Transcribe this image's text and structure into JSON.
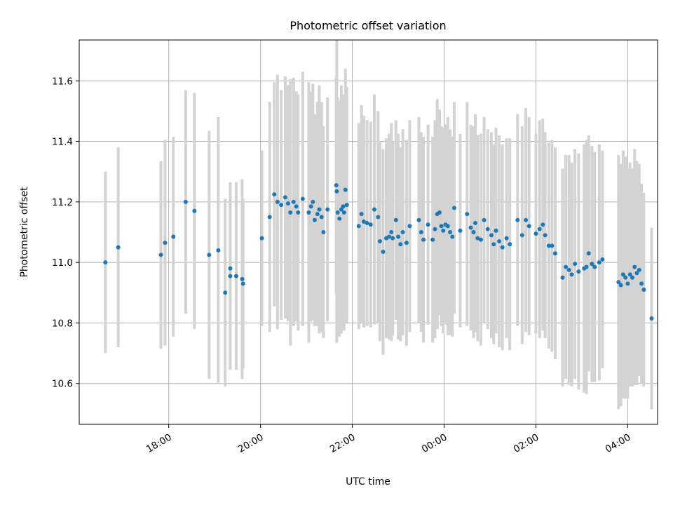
{
  "chart_data": {
    "type": "scatter",
    "title": "Photometric offset variation",
    "xlabel": "UTC time",
    "ylabel": "Photometric offset",
    "x_unit": "hours UTC (continuous, past midnight > 24)",
    "xlim": [
      16.05,
      28.65
    ],
    "ylim": [
      10.465,
      11.735
    ],
    "x_ticks": [
      18,
      20,
      22,
      24,
      26,
      28
    ],
    "x_tick_labels": [
      "18:00",
      "20:00",
      "22:00",
      "00:00",
      "02:00",
      "04:00"
    ],
    "y_ticks": [
      10.6,
      10.8,
      11.0,
      11.2,
      11.4,
      11.6
    ],
    "y_tick_labels": [
      "10.6",
      "10.8",
      "11.0",
      "11.2",
      "11.4",
      "11.6"
    ],
    "grid": true,
    "colors": {
      "marker": "#1f77b4",
      "errorbar": "#d3d3d3",
      "grid": "#b0b0b0"
    },
    "points": [
      [
        16.62,
        11.0,
        0.3
      ],
      [
        16.9,
        11.05,
        0.33
      ],
      [
        17.83,
        11.025,
        0.31
      ],
      [
        17.92,
        11.065,
        0.34
      ],
      [
        18.1,
        11.085,
        0.33
      ],
      [
        18.37,
        11.2,
        0.37
      ],
      [
        18.56,
        11.17,
        0.39
      ],
      [
        18.88,
        11.025,
        0.41
      ],
      [
        19.08,
        11.04,
        0.44
      ],
      [
        19.23,
        10.9,
        0.31
      ],
      [
        19.34,
        10.955,
        0.31
      ],
      [
        19.34,
        10.98,
        0.28
      ],
      [
        19.47,
        10.955,
        0.31
      ],
      [
        19.6,
        10.945,
        0.33
      ],
      [
        19.62,
        10.93,
        0.28
      ],
      [
        20.03,
        11.08,
        0.29
      ],
      [
        20.2,
        11.15,
        0.38
      ],
      [
        20.3,
        11.225,
        0.37
      ],
      [
        20.37,
        11.2,
        0.42
      ],
      [
        20.45,
        11.19,
        0.38
      ],
      [
        20.54,
        11.215,
        0.4
      ],
      [
        20.6,
        11.195,
        0.39
      ],
      [
        20.65,
        11.165,
        0.44
      ],
      [
        20.72,
        11.2,
        0.41
      ],
      [
        20.78,
        11.185,
        0.38
      ],
      [
        20.82,
        11.165,
        0.39
      ],
      [
        20.92,
        11.21,
        0.42
      ],
      [
        21.05,
        11.165,
        0.43
      ],
      [
        21.1,
        11.185,
        0.38
      ],
      [
        21.14,
        11.2,
        0.39
      ],
      [
        21.18,
        11.14,
        0.35
      ],
      [
        21.24,
        11.16,
        0.37
      ],
      [
        21.28,
        11.175,
        0.41
      ],
      [
        21.33,
        11.15,
        0.38
      ],
      [
        21.37,
        11.1,
        0.35
      ],
      [
        21.46,
        11.175,
        0.37
      ],
      [
        21.65,
        11.255,
        0.36
      ],
      [
        21.66,
        11.235,
        0.5
      ],
      [
        21.68,
        11.165,
        0.38
      ],
      [
        21.72,
        11.145,
        0.39
      ],
      [
        21.76,
        11.175,
        0.41
      ],
      [
        21.8,
        11.185,
        0.37
      ],
      [
        21.82,
        11.165,
        0.39
      ],
      [
        21.85,
        11.24,
        0.4
      ],
      [
        21.88,
        11.19,
        0.39
      ],
      [
        22.14,
        11.12,
        0.34
      ],
      [
        22.2,
        11.16,
        0.36
      ],
      [
        22.25,
        11.135,
        0.35
      ],
      [
        22.32,
        11.13,
        0.34
      ],
      [
        22.4,
        11.125,
        0.34
      ],
      [
        22.48,
        11.175,
        0.38
      ],
      [
        22.56,
        11.15,
        0.35
      ],
      [
        22.6,
        11.07,
        0.33
      ],
      [
        22.67,
        11.035,
        0.34
      ],
      [
        22.74,
        11.08,
        0.33
      ],
      [
        22.8,
        11.085,
        0.34
      ],
      [
        22.85,
        11.1,
        0.36
      ],
      [
        22.88,
        11.08,
        0.32
      ],
      [
        22.95,
        11.14,
        0.33
      ],
      [
        23.0,
        11.085,
        0.34
      ],
      [
        23.05,
        11.06,
        0.32
      ],
      [
        23.1,
        11.1,
        0.34
      ],
      [
        23.18,
        11.065,
        0.34
      ],
      [
        23.25,
        11.12,
        0.35
      ],
      [
        23.45,
        11.14,
        0.34
      ],
      [
        23.5,
        11.1,
        0.33
      ],
      [
        23.55,
        11.075,
        0.34
      ],
      [
        23.65,
        11.125,
        0.33
      ],
      [
        23.75,
        11.075,
        0.34
      ],
      [
        23.8,
        11.11,
        0.36
      ],
      [
        23.85,
        11.16,
        0.38
      ],
      [
        23.9,
        11.165,
        0.34
      ],
      [
        23.94,
        11.12,
        0.33
      ],
      [
        23.98,
        11.105,
        0.34
      ],
      [
        24.03,
        11.125,
        0.33
      ],
      [
        24.08,
        11.12,
        0.36
      ],
      [
        24.13,
        11.1,
        0.34
      ],
      [
        24.18,
        11.085,
        0.33
      ],
      [
        24.22,
        11.18,
        0.35
      ],
      [
        24.35,
        11.105,
        0.32
      ],
      [
        24.5,
        11.16,
        0.37
      ],
      [
        24.58,
        11.115,
        0.34
      ],
      [
        24.64,
        11.1,
        0.35
      ],
      [
        24.68,
        11.13,
        0.36
      ],
      [
        24.73,
        11.08,
        0.34
      ],
      [
        24.8,
        11.075,
        0.35
      ],
      [
        24.87,
        11.14,
        0.34
      ],
      [
        24.95,
        11.11,
        0.33
      ],
      [
        25.03,
        11.09,
        0.34
      ],
      [
        25.08,
        11.06,
        0.33
      ],
      [
        25.13,
        11.105,
        0.34
      ],
      [
        25.2,
        11.07,
        0.35
      ],
      [
        25.27,
        11.05,
        0.34
      ],
      [
        25.36,
        11.08,
        0.33
      ],
      [
        25.43,
        11.06,
        0.35
      ],
      [
        25.6,
        11.14,
        0.35
      ],
      [
        25.7,
        11.09,
        0.36
      ],
      [
        25.78,
        11.14,
        0.37
      ],
      [
        25.85,
        11.12,
        0.36
      ],
      [
        26.0,
        11.095,
        0.33
      ],
      [
        26.08,
        11.11,
        0.36
      ],
      [
        26.15,
        11.125,
        0.35
      ],
      [
        26.2,
        11.09,
        0.34
      ],
      [
        26.28,
        11.055,
        0.34
      ],
      [
        26.35,
        11.055,
        0.35
      ],
      [
        26.42,
        11.03,
        0.35
      ],
      [
        26.58,
        10.95,
        0.36
      ],
      [
        26.65,
        10.985,
        0.37
      ],
      [
        26.72,
        10.975,
        0.38
      ],
      [
        26.78,
        10.96,
        0.37
      ],
      [
        26.85,
        10.995,
        0.38
      ],
      [
        26.93,
        10.97,
        0.39
      ],
      [
        27.05,
        10.98,
        0.41
      ],
      [
        27.1,
        10.985,
        0.42
      ],
      [
        27.15,
        11.03,
        0.39
      ],
      [
        27.22,
        10.995,
        0.39
      ],
      [
        27.28,
        10.985,
        0.38
      ],
      [
        27.38,
        11.0,
        0.39
      ],
      [
        27.45,
        11.01,
        0.36
      ],
      [
        27.8,
        10.935,
        0.42
      ],
      [
        27.85,
        10.925,
        0.4
      ],
      [
        27.9,
        10.96,
        0.41
      ],
      [
        27.95,
        10.95,
        0.4
      ],
      [
        28.0,
        10.93,
        0.38
      ],
      [
        28.05,
        10.96,
        0.37
      ],
      [
        28.1,
        10.95,
        0.36
      ],
      [
        28.15,
        10.985,
        0.39
      ],
      [
        28.2,
        10.965,
        0.37
      ],
      [
        28.25,
        10.975,
        0.35
      ],
      [
        28.3,
        10.93,
        0.33
      ],
      [
        28.35,
        10.91,
        0.32
      ],
      [
        28.52,
        10.815,
        0.3
      ]
    ]
  }
}
